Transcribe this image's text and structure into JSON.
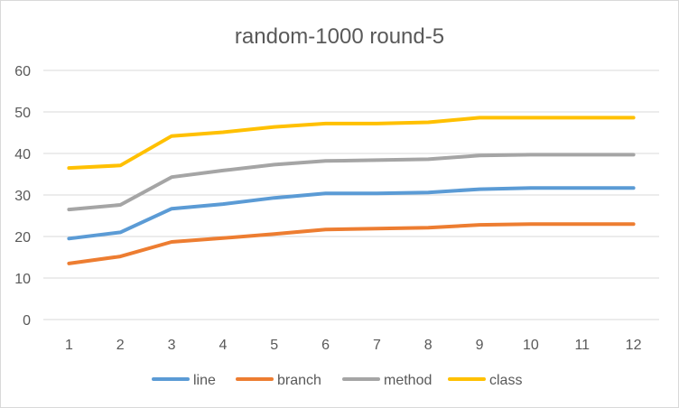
{
  "chart_data": {
    "type": "line",
    "title": "random-1000 round-5",
    "xlabel": "",
    "ylabel": "",
    "x": [
      1,
      2,
      3,
      4,
      5,
      6,
      7,
      8,
      9,
      10,
      11,
      12
    ],
    "x_tick_labels": [
      "1",
      "2",
      "3",
      "4",
      "5",
      "6",
      "7",
      "8",
      "9",
      "10",
      "11",
      "12"
    ],
    "ylim": [
      0,
      60
    ],
    "y_ticks": [
      0,
      10,
      20,
      30,
      40,
      50,
      60
    ],
    "y_tick_labels": [
      "0",
      "10",
      "20",
      "30",
      "40",
      "50",
      "60"
    ],
    "grid": true,
    "legend_position": "bottom",
    "series": [
      {
        "name": "line",
        "color": "#5b9bd5",
        "values": [
          19.5,
          21.0,
          26.7,
          27.8,
          29.3,
          30.4,
          30.4,
          30.6,
          31.4,
          31.7,
          31.7,
          31.7
        ]
      },
      {
        "name": "branch",
        "color": "#ed7d31",
        "values": [
          13.5,
          15.2,
          18.7,
          19.6,
          20.6,
          21.7,
          21.9,
          22.1,
          22.8,
          23.0,
          23.0,
          23.0
        ]
      },
      {
        "name": "method",
        "color": "#a5a5a5",
        "values": [
          26.5,
          27.6,
          34.3,
          35.9,
          37.3,
          38.2,
          38.4,
          38.6,
          39.5,
          39.7,
          39.7,
          39.7
        ]
      },
      {
        "name": "class",
        "color": "#ffc000",
        "values": [
          36.5,
          37.1,
          44.2,
          45.1,
          46.4,
          47.2,
          47.2,
          47.5,
          48.6,
          48.6,
          48.6,
          48.6
        ]
      }
    ]
  }
}
